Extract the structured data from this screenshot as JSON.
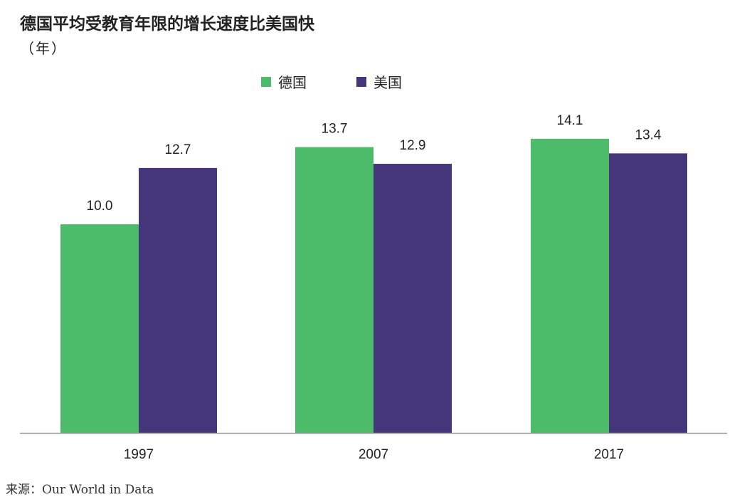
{
  "chart_data": {
    "type": "bar",
    "title": "德国平均受教育年限的增长速度比美国快",
    "unit_label": "（年）",
    "categories": [
      "1997",
      "2007",
      "2017"
    ],
    "series": [
      {
        "name": "德国",
        "color": "#4cbb6a",
        "values": [
          10.0,
          13.7,
          14.1
        ]
      },
      {
        "name": "美国",
        "color": "#45357a",
        "values": [
          12.7,
          12.9,
          13.4
        ]
      }
    ],
    "value_labels": [
      [
        "10.0",
        "13.7",
        "14.1"
      ],
      [
        "12.7",
        "12.9",
        "13.4"
      ]
    ],
    "ylim": [
      0,
      17.5
    ],
    "grid": false,
    "legend_position": "top-center"
  },
  "source": "来源：Our World in Data"
}
